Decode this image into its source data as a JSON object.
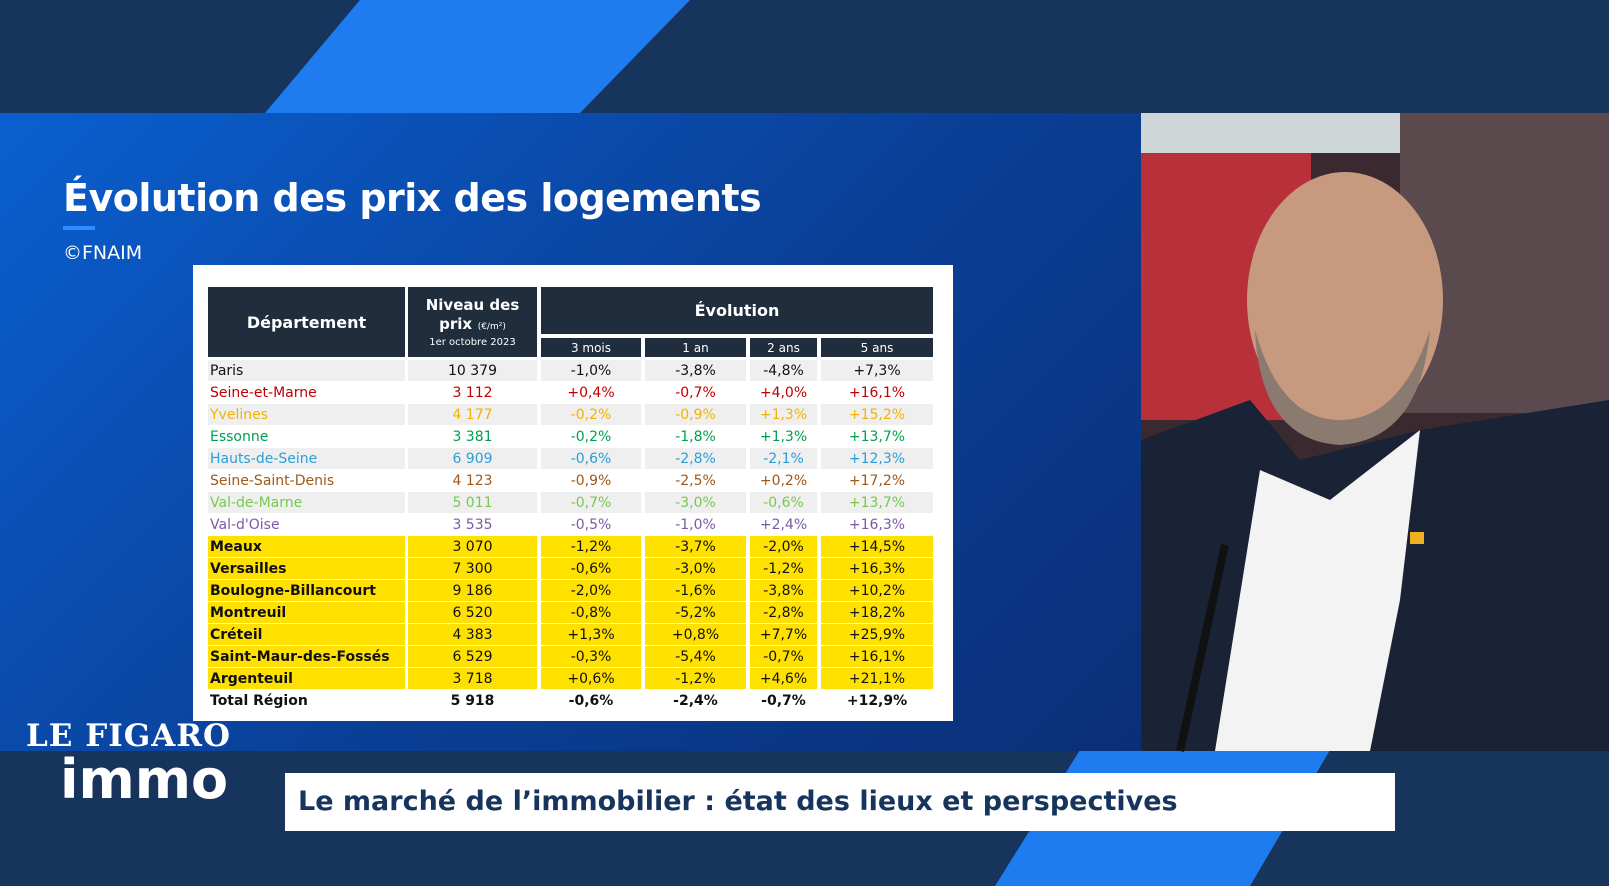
{
  "slide": {
    "title": "Évolution des prix des logements",
    "source": "©FNAIM"
  },
  "table": {
    "headers": {
      "department": "Département",
      "price": "Niveau des",
      "price_line2": "prix",
      "price_unit": "(€/m²)",
      "price_date": "1er octobre 2023",
      "evolution": "Évolution",
      "periods": [
        "3 mois",
        "1 an",
        "2 ans",
        "5 ans"
      ]
    },
    "rows": [
      {
        "cells": [
          "Paris",
          "10 379",
          "-1,0%",
          "-3,8%",
          "-4,8%",
          "+7,3%"
        ],
        "color": "#111111",
        "fill": "#efefef"
      },
      {
        "cells": [
          "Seine-et-Marne",
          "3 112",
          "+0,4%",
          "-0,7%",
          "+4,0%",
          "+16,1%"
        ],
        "color": "#c00000",
        "fill": "#ffffff"
      },
      {
        "cells": [
          "Yvelines",
          "4 177",
          "-0,2%",
          "-0,9%",
          "+1,3%",
          "+15,2%"
        ],
        "color": "#f2b300",
        "fill": "#efefef"
      },
      {
        "cells": [
          "Essonne",
          "3 381",
          "-0,2%",
          "-1,8%",
          "+1,3%",
          "+13,7%"
        ],
        "color": "#00a050",
        "fill": "#ffffff"
      },
      {
        "cells": [
          "Hauts-de-Seine",
          "6 909",
          "-0,6%",
          "-2,8%",
          "-2,1%",
          "+12,3%"
        ],
        "color": "#2a9fd6",
        "fill": "#efefef"
      },
      {
        "cells": [
          "Seine-Saint-Denis",
          "4 123",
          "-0,9%",
          "-2,5%",
          "+0,2%",
          "+17,2%"
        ],
        "color": "#a0581a",
        "fill": "#ffffff"
      },
      {
        "cells": [
          "Val-de-Marne",
          "5 011",
          "-0,7%",
          "-3,0%",
          "-0,6%",
          "+13,7%"
        ],
        "color": "#78c850",
        "fill": "#efefef"
      },
      {
        "cells": [
          "Val-d'Oise",
          "3 535",
          "-0,5%",
          "-1,0%",
          "+2,4%",
          "+16,3%"
        ],
        "color": "#7b5aa6",
        "fill": "#ffffff"
      },
      {
        "cells": [
          "Meaux",
          "3 070",
          "-1,2%",
          "-3,7%",
          "-2,0%",
          "+14,5%"
        ],
        "color": "#111111",
        "fill": "#ffe100"
      },
      {
        "cells": [
          "Versailles",
          "7 300",
          "-0,6%",
          "-3,0%",
          "-1,2%",
          "+16,3%"
        ],
        "color": "#111111",
        "fill": "#ffe100"
      },
      {
        "cells": [
          "Boulogne-Billancourt",
          "9 186",
          "-2,0%",
          "-1,6%",
          "-3,8%",
          "+10,2%"
        ],
        "color": "#111111",
        "fill": "#ffe100"
      },
      {
        "cells": [
          "Montreuil",
          "6 520",
          "-0,8%",
          "-5,2%",
          "-2,8%",
          "+18,2%"
        ],
        "color": "#111111",
        "fill": "#ffe100"
      },
      {
        "cells": [
          "Créteil",
          "4 383",
          "+1,3%",
          "+0,8%",
          "+7,7%",
          "+25,9%"
        ],
        "color": "#111111",
        "fill": "#ffe100"
      },
      {
        "cells": [
          "Saint-Maur-des-Fossés",
          "6 529",
          "-0,3%",
          "-5,4%",
          "-0,7%",
          "+16,1%"
        ],
        "color": "#111111",
        "fill": "#ffe100"
      },
      {
        "cells": [
          "Argenteuil",
          "3 718",
          "+0,6%",
          "-1,2%",
          "+4,6%",
          "+21,1%"
        ],
        "color": "#111111",
        "fill": "#ffe100"
      },
      {
        "cells": [
          "Total Région",
          "5 918",
          "-0,6%",
          "-2,4%",
          "-0,7%",
          "+12,9%"
        ],
        "color": "#111111",
        "fill": "#ffffff",
        "bold": true
      }
    ]
  },
  "logo": {
    "line1": "LE FIGARO",
    "line2": "immo"
  },
  "caption": "Le marché de l’immobilier : état des lieux et perspectives"
}
